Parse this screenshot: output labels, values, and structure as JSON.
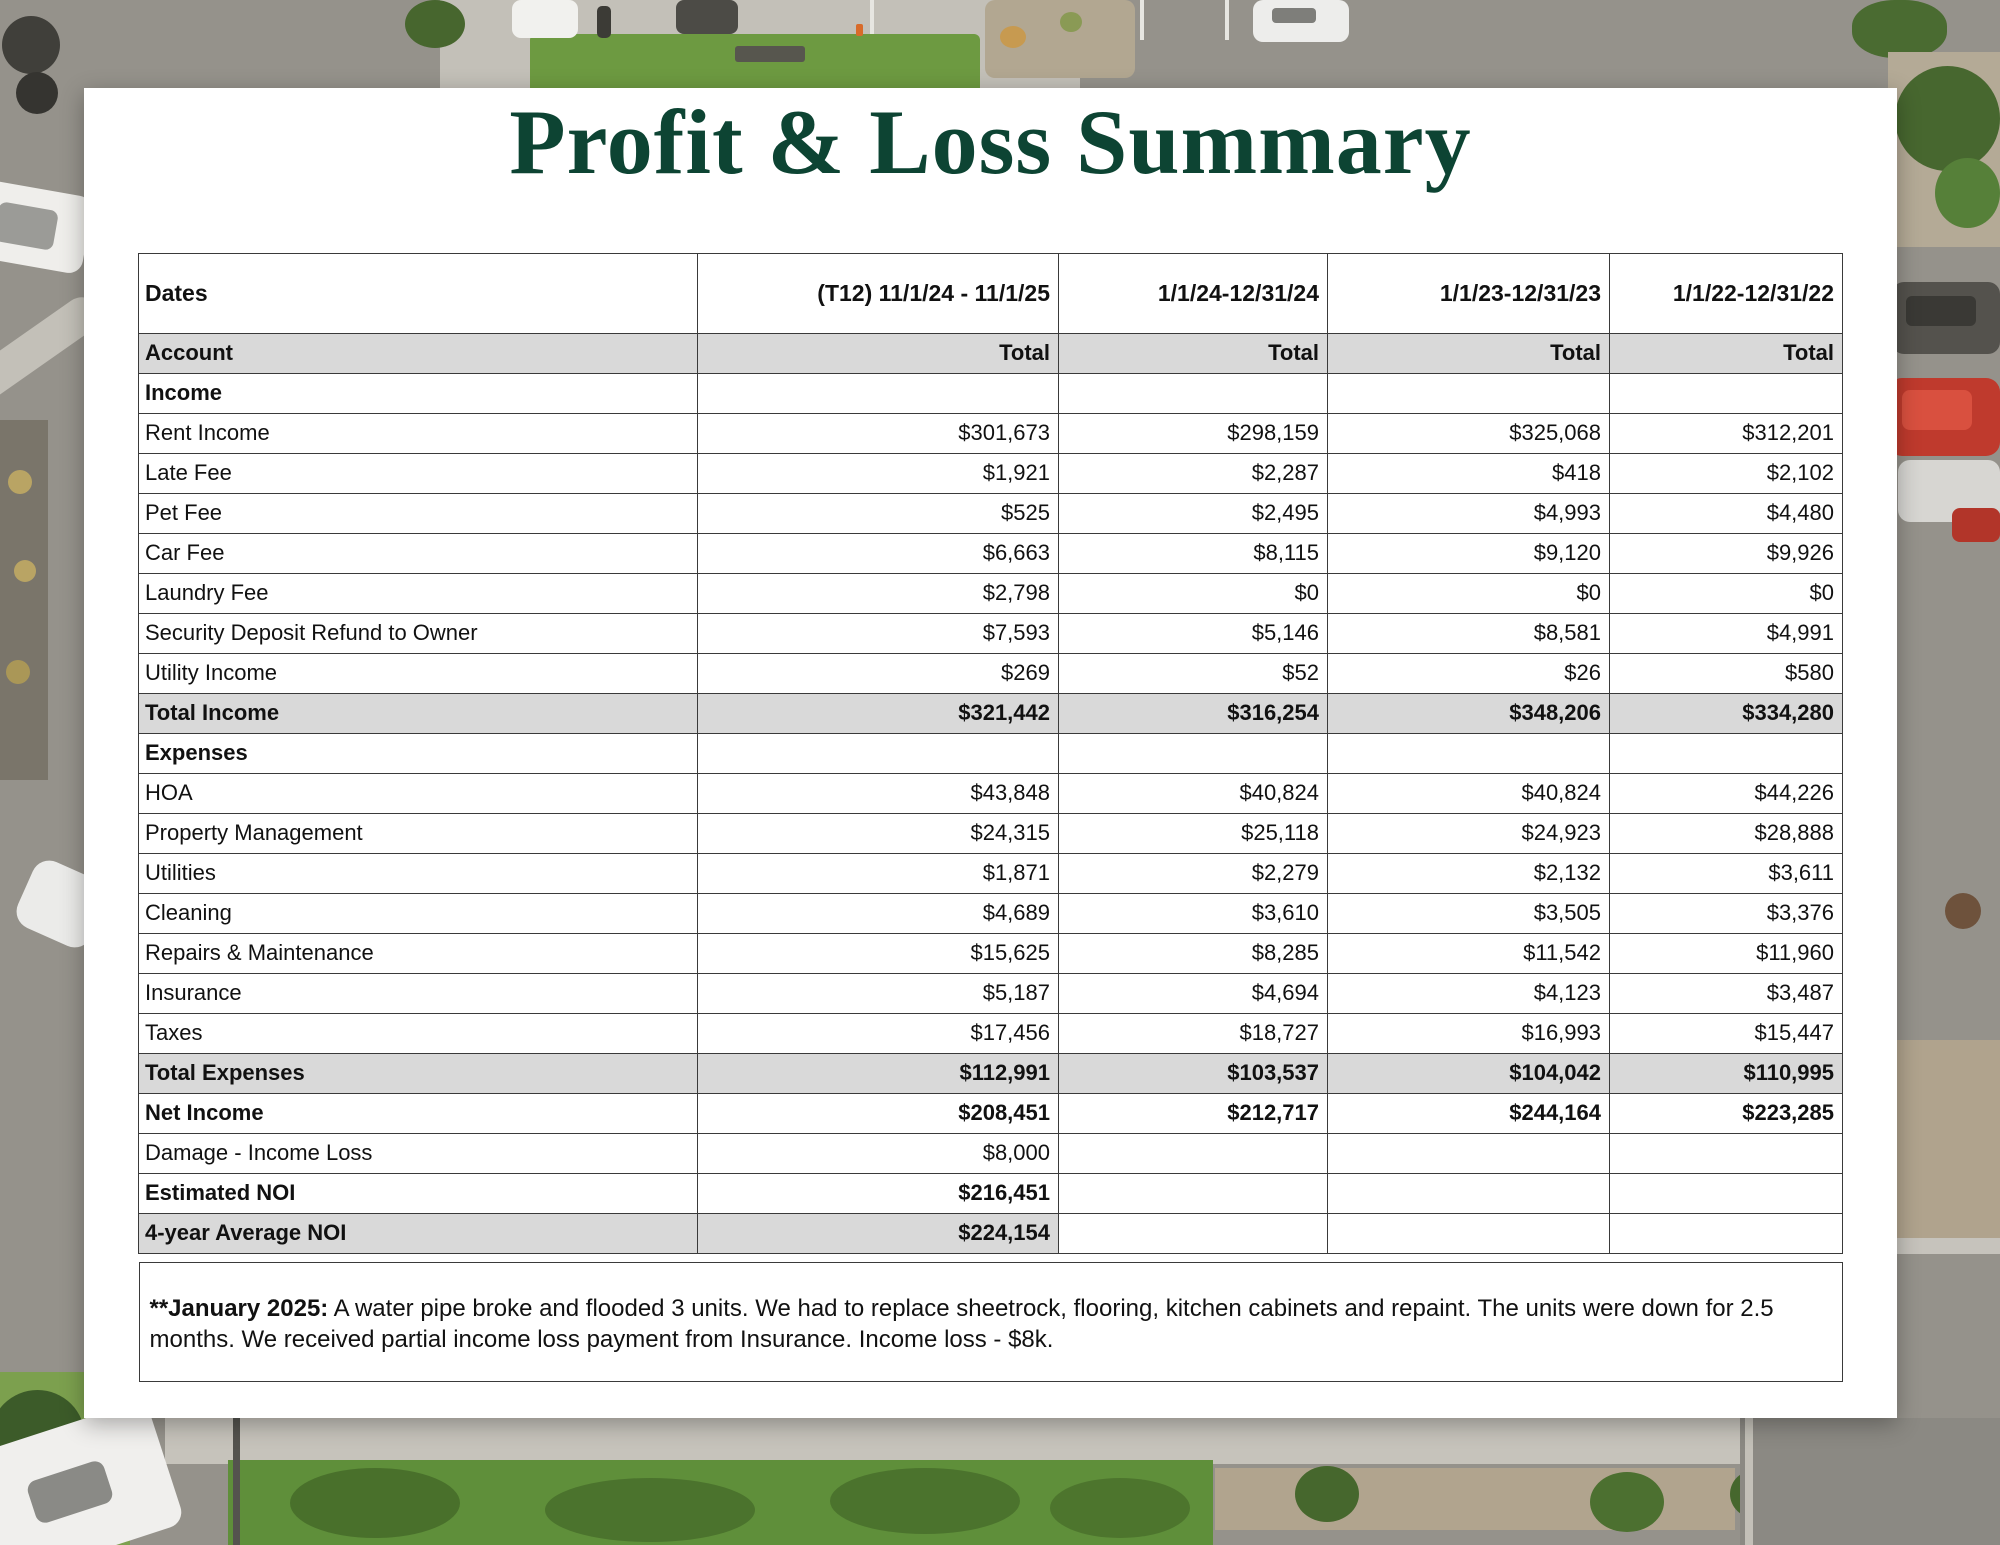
{
  "page": {
    "title": "Profit & Loss Summary"
  },
  "colors": {
    "title_green": "#0d4433",
    "row_shade": "#d9d9d9"
  },
  "table": {
    "dates_row": {
      "label": "Dates",
      "values": [
        "(T12)  11/1/24 - 11/1/25",
        "1/1/24-12/31/24",
        "1/1/23-12/31/23",
        "1/1/22-12/31/22"
      ]
    },
    "account_row": {
      "label": "Account",
      "values": [
        "Total",
        "Total",
        "Total",
        "Total"
      ]
    },
    "rows": [
      {
        "label": "Income",
        "style": "section",
        "values": [
          "",
          "",
          "",
          ""
        ]
      },
      {
        "label": "Rent Income",
        "style": "normal",
        "values": [
          "$301,673",
          "$298,159",
          "$325,068",
          "$312,201"
        ]
      },
      {
        "label": "Late Fee",
        "style": "normal",
        "values": [
          "$1,921",
          "$2,287",
          "$418",
          "$2,102"
        ]
      },
      {
        "label": "Pet Fee",
        "style": "normal",
        "values": [
          "$525",
          "$2,495",
          "$4,993",
          "$4,480"
        ]
      },
      {
        "label": "Car Fee",
        "style": "normal",
        "values": [
          "$6,663",
          "$8,115",
          "$9,120",
          "$9,926"
        ]
      },
      {
        "label": "Laundry Fee",
        "style": "normal",
        "values": [
          "$2,798",
          "$0",
          "$0",
          "$0"
        ]
      },
      {
        "label": "Security Deposit Refund to Owner",
        "style": "normal",
        "values": [
          "$7,593",
          "$5,146",
          "$8,581",
          "$4,991"
        ]
      },
      {
        "label": "Utility Income",
        "style": "normal",
        "values": [
          "$269",
          "$52",
          "$26",
          "$580"
        ]
      },
      {
        "label": "Total Income",
        "style": "total",
        "values": [
          "$321,442",
          "$316,254",
          "$348,206",
          "$334,280"
        ]
      },
      {
        "label": "Expenses",
        "style": "section",
        "values": [
          "",
          "",
          "",
          ""
        ]
      },
      {
        "label": "HOA",
        "style": "normal",
        "values": [
          "$43,848",
          "$40,824",
          "$40,824",
          "$44,226"
        ]
      },
      {
        "label": "Property Management",
        "style": "normal",
        "values": [
          "$24,315",
          "$25,118",
          "$24,923",
          "$28,888"
        ]
      },
      {
        "label": "Utilities",
        "style": "normal",
        "values": [
          "$1,871",
          "$2,279",
          "$2,132",
          "$3,611"
        ]
      },
      {
        "label": "Cleaning",
        "style": "normal",
        "values": [
          "$4,689",
          "$3,610",
          "$3,505",
          "$3,376"
        ]
      },
      {
        "label": "Repairs & Maintenance",
        "style": "normal",
        "values": [
          "$15,625",
          "$8,285",
          "$11,542",
          "$11,960"
        ]
      },
      {
        "label": "Insurance",
        "style": "normal",
        "values": [
          "$5,187",
          "$4,694",
          "$4,123",
          "$3,487"
        ]
      },
      {
        "label": "Taxes",
        "style": "normal",
        "values": [
          "$17,456",
          "$18,727",
          "$16,993",
          "$15,447"
        ]
      },
      {
        "label": "Total Expenses",
        "style": "total",
        "values": [
          "$112,991",
          "$103,537",
          "$104,042",
          "$110,995"
        ]
      },
      {
        "label": "Net Income",
        "style": "bold",
        "values": [
          "$208,451",
          "$212,717",
          "$244,164",
          "$223,285"
        ]
      },
      {
        "label": "Damage - Income Loss",
        "style": "normal",
        "values": [
          "$8,000",
          "",
          "",
          ""
        ]
      },
      {
        "label": "Estimated NOI",
        "style": "bold",
        "values": [
          "$216,451",
          "",
          "",
          ""
        ]
      },
      {
        "label": "4-year Average NOI",
        "style": "total-first",
        "values": [
          "$224,154",
          "",
          "",
          ""
        ]
      }
    ]
  },
  "footnote": {
    "bold_prefix": "**January 2025:",
    "body": " A water pipe broke and flooded 3 units. We had to replace sheetrock, flooring, kitchen cabinets and repaint. The units were down for 2.5 months. We received partial income loss payment from Insurance. Income loss - $8k."
  }
}
